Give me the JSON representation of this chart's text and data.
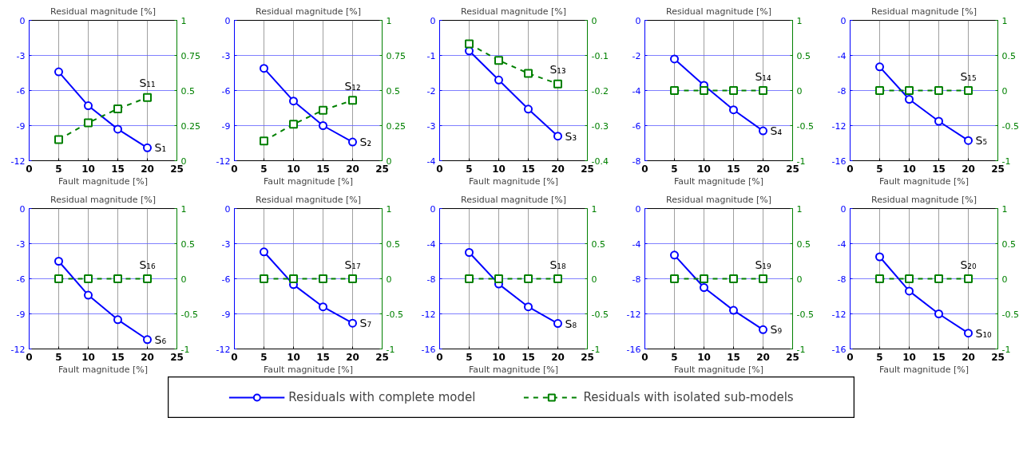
{
  "chart_data": [
    {
      "type": "line",
      "title": "Residual magnitude [%]",
      "xlabel": "Fault magnitude [%]",
      "x": [
        5,
        10,
        15,
        20
      ],
      "xlim": [
        0,
        25
      ],
      "xticks": [
        0,
        5,
        10,
        15,
        20,
        25
      ],
      "ylim": [
        -12,
        0
      ],
      "yticks": [
        -12,
        -9,
        -6,
        -3,
        0
      ],
      "y2lim": [
        0,
        1
      ],
      "y2ticks": [
        0,
        0.25,
        0.5,
        0.75,
        1
      ],
      "grid": true,
      "legend": "bottom",
      "series": [
        {
          "name": "Residuals with complete model",
          "color": "#0000ff",
          "marker": "circle",
          "line_style": "solid",
          "values": [
            -4.4,
            -7.3,
            -9.3,
            -10.9
          ]
        },
        {
          "name": "Residuals with isolated sub-models",
          "color": "#008000",
          "marker": "square",
          "line_style": "dashed",
          "axis": "y2",
          "values": [
            0.15,
            0.27,
            0.37,
            0.45
          ]
        }
      ],
      "annotations": [
        "S₁",
        "S₁₁"
      ]
    },
    {
      "type": "line",
      "title": "Residual magnitude [%]",
      "xlabel": "Fault magnitude [%]",
      "x": [
        5,
        10,
        15,
        20
      ],
      "xlim": [
        0,
        25
      ],
      "xticks": [
        0,
        5,
        10,
        15,
        20,
        25
      ],
      "ylim": [
        -12,
        0
      ],
      "yticks": [
        -12,
        -9,
        -6,
        -3,
        0
      ],
      "y2lim": [
        0,
        1
      ],
      "y2ticks": [
        0,
        0.25,
        0.5,
        0.75,
        1
      ],
      "grid": true,
      "series": [
        {
          "color": "#0000ff",
          "marker": "circle",
          "line_style": "solid",
          "values": [
            -4.1,
            -6.9,
            -9.0,
            -10.4
          ]
        },
        {
          "color": "#008000",
          "marker": "square",
          "line_style": "dashed",
          "axis": "y2",
          "values": [
            0.14,
            0.26,
            0.36,
            0.43
          ]
        }
      ],
      "annotations": [
        "S₂",
        "S₁₂"
      ]
    },
    {
      "type": "line",
      "title": "Residual magnitude [%]",
      "xlabel": "Fault magnitude [%]",
      "x": [
        5,
        10,
        15,
        20
      ],
      "xlim": [
        0,
        25
      ],
      "xticks": [
        0,
        5,
        10,
        15,
        20,
        25
      ],
      "ylim": [
        -4,
        0
      ],
      "yticks": [
        -4,
        -3,
        -2,
        -1,
        0
      ],
      "y2lim": [
        -0.4,
        0
      ],
      "y2ticks": [
        -0.4,
        -0.3,
        -0.2,
        -0.1,
        0
      ],
      "grid": true,
      "series": [
        {
          "color": "#0000ff",
          "marker": "circle",
          "line_style": "solid",
          "values": [
            -0.87,
            -1.7,
            -2.53,
            -3.3
          ]
        },
        {
          "color": "#008000",
          "marker": "square",
          "line_style": "dashed",
          "axis": "y2",
          "values": [
            -0.067,
            -0.114,
            -0.151,
            -0.181
          ]
        }
      ],
      "annotations": [
        "S₃",
        "S₁₃"
      ]
    },
    {
      "type": "line",
      "title": "Residual magnitude [%]",
      "xlabel": "Fault magnitude [%]",
      "x": [
        5,
        10,
        15,
        20
      ],
      "xlim": [
        0,
        25
      ],
      "xticks": [
        0,
        5,
        10,
        15,
        20,
        25
      ],
      "ylim": [
        -8,
        0
      ],
      "yticks": [
        -8,
        -6,
        -4,
        -2,
        0
      ],
      "y2lim": [
        -1,
        1
      ],
      "y2ticks": [
        -1,
        -0.5,
        0,
        0.5,
        1
      ],
      "grid": true,
      "series": [
        {
          "color": "#0000ff",
          "marker": "circle",
          "line_style": "solid",
          "values": [
            -2.2,
            -3.7,
            -5.1,
            -6.3
          ]
        },
        {
          "color": "#008000",
          "marker": "square",
          "line_style": "dashed",
          "axis": "y2",
          "values": [
            0,
            0,
            0,
            0
          ]
        }
      ],
      "annotations": [
        "S₄",
        "S₁₄"
      ]
    },
    {
      "type": "line",
      "title": "Residual magnitude [%]",
      "xlabel": "Fault magnitude [%]",
      "x": [
        5,
        10,
        15,
        20
      ],
      "xlim": [
        0,
        25
      ],
      "xticks": [
        0,
        5,
        10,
        15,
        20,
        25
      ],
      "ylim": [
        -16,
        0
      ],
      "yticks": [
        -16,
        -12,
        -8,
        -4,
        0
      ],
      "y2lim": [
        -1,
        1
      ],
      "y2ticks": [
        -1,
        -0.5,
        0,
        0.5,
        1
      ],
      "grid": true,
      "series": [
        {
          "color": "#0000ff",
          "marker": "circle",
          "line_style": "solid",
          "values": [
            -5.3,
            -9.0,
            -11.5,
            -13.7
          ]
        },
        {
          "color": "#008000",
          "marker": "square",
          "line_style": "dashed",
          "axis": "y2",
          "values": [
            0,
            0,
            0,
            0
          ]
        }
      ],
      "annotations": [
        "S₅",
        "S₁₅"
      ]
    },
    {
      "type": "line",
      "title": "Residual magnitude [%]",
      "xlabel": "Fault magnitude [%]",
      "x": [
        5,
        10,
        15,
        20
      ],
      "xlim": [
        0,
        25
      ],
      "xticks": [
        0,
        5,
        10,
        15,
        20,
        25
      ],
      "ylim": [
        -12,
        0
      ],
      "yticks": [
        -12,
        -9,
        -6,
        -3,
        0
      ],
      "y2lim": [
        -1,
        1
      ],
      "y2ticks": [
        -1,
        -0.5,
        0,
        0.5,
        1
      ],
      "grid": true,
      "series": [
        {
          "color": "#0000ff",
          "marker": "circle",
          "line_style": "solid",
          "values": [
            -4.5,
            -7.4,
            -9.5,
            -11.2
          ]
        },
        {
          "color": "#008000",
          "marker": "square",
          "line_style": "dashed",
          "axis": "y2",
          "values": [
            0,
            0,
            0,
            0
          ]
        }
      ],
      "annotations": [
        "S₆",
        "S₁₆"
      ]
    },
    {
      "type": "line",
      "title": "Residual magnitude [%]",
      "xlabel": "Fault magnitude [%]",
      "x": [
        5,
        10,
        15,
        20
      ],
      "xlim": [
        0,
        25
      ],
      "xticks": [
        0,
        5,
        10,
        15,
        20,
        25
      ],
      "ylim": [
        -12,
        0
      ],
      "yticks": [
        -12,
        -9,
        -6,
        -3,
        0
      ],
      "y2lim": [
        -1,
        1
      ],
      "y2ticks": [
        -1,
        -0.5,
        0,
        0.5,
        1
      ],
      "grid": true,
      "series": [
        {
          "color": "#0000ff",
          "marker": "circle",
          "line_style": "solid",
          "values": [
            -3.7,
            -6.5,
            -8.4,
            -9.8
          ]
        },
        {
          "color": "#008000",
          "marker": "square",
          "line_style": "dashed",
          "axis": "y2",
          "values": [
            0,
            0,
            0,
            0
          ]
        }
      ],
      "annotations": [
        "S₇",
        "S₁₇"
      ]
    },
    {
      "type": "line",
      "title": "Residual magnitude [%]",
      "xlabel": "Fault magnitude [%]",
      "x": [
        5,
        10,
        15,
        20
      ],
      "xlim": [
        0,
        25
      ],
      "xticks": [
        0,
        5,
        10,
        15,
        20,
        25
      ],
      "ylim": [
        -16,
        0
      ],
      "yticks": [
        -16,
        -12,
        -8,
        -4,
        0
      ],
      "y2lim": [
        -1,
        1
      ],
      "y2ticks": [
        -1,
        -0.5,
        0,
        0.5,
        1
      ],
      "grid": true,
      "series": [
        {
          "color": "#0000ff",
          "marker": "circle",
          "line_style": "solid",
          "values": [
            -5.0,
            -8.6,
            -11.2,
            -13.1
          ]
        },
        {
          "color": "#008000",
          "marker": "square",
          "line_style": "dashed",
          "axis": "y2",
          "values": [
            0,
            0,
            0,
            0
          ]
        }
      ],
      "annotations": [
        "S₈",
        "S₁₈"
      ]
    },
    {
      "type": "line",
      "title": "Residual magnitude [%]",
      "xlabel": "Fault magnitude [%]",
      "x": [
        5,
        10,
        15,
        20
      ],
      "xlim": [
        0,
        25
      ],
      "xticks": [
        0,
        5,
        10,
        15,
        20,
        25
      ],
      "ylim": [
        -16,
        0
      ],
      "yticks": [
        -16,
        -12,
        -8,
        -4,
        0
      ],
      "y2lim": [
        -1,
        1
      ],
      "y2ticks": [
        -1,
        -0.5,
        0,
        0.5,
        1
      ],
      "grid": true,
      "series": [
        {
          "color": "#0000ff",
          "marker": "circle",
          "line_style": "solid",
          "values": [
            -5.3,
            -9.0,
            -11.6,
            -13.8
          ]
        },
        {
          "color": "#008000",
          "marker": "square",
          "line_style": "dashed",
          "axis": "y2",
          "values": [
            0,
            0,
            0,
            0
          ]
        }
      ],
      "annotations": [
        "S₉",
        "S₁₉"
      ]
    },
    {
      "type": "line",
      "title": "Residual magnitude [%]",
      "xlabel": "Fault magnitude [%]",
      "x": [
        5,
        10,
        15,
        20
      ],
      "xlim": [
        0,
        25
      ],
      "xticks": [
        0,
        5,
        10,
        15,
        20,
        25
      ],
      "ylim": [
        -16,
        0
      ],
      "yticks": [
        -16,
        -12,
        -8,
        -4,
        0
      ],
      "y2lim": [
        -1,
        1
      ],
      "y2ticks": [
        -1,
        -0.5,
        0,
        0.5,
        1
      ],
      "grid": true,
      "series": [
        {
          "color": "#0000ff",
          "marker": "circle",
          "line_style": "solid",
          "values": [
            -5.5,
            -9.4,
            -12.0,
            -14.2
          ]
        },
        {
          "color": "#008000",
          "marker": "square",
          "line_style": "dashed",
          "axis": "y2",
          "values": [
            0,
            0,
            0,
            0
          ]
        }
      ],
      "annotations": [
        "S₁₀",
        "S₂₀"
      ]
    }
  ]
}
